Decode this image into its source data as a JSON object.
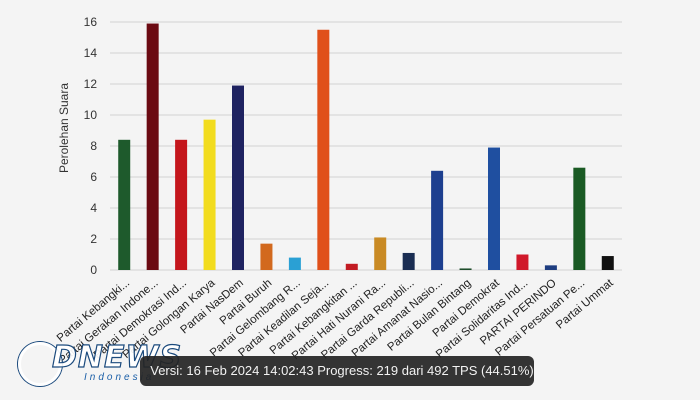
{
  "chart_data": {
    "type": "bar",
    "title": "",
    "xlabel": "",
    "ylabel": "Perolehan Suara",
    "ylim": [
      0,
      16
    ],
    "yticks": [
      0,
      2,
      4,
      6,
      8,
      10,
      12,
      14,
      16
    ],
    "grid": true,
    "categories": [
      "Partai Kebangki...",
      "Partai Gerakan Indone...",
      "Partai Demokrasi Ind...",
      "Partai Golongan Karya",
      "Partai NasDem",
      "Partai Buruh",
      "Partai Gelombang R...",
      "Partai Keadilan Seja...",
      "Partai Kebangkitan ...",
      "Partai Hati Nurani Ra...",
      "Partai Garda Republi...",
      "Partai Amanat Nasio...",
      "Partai Bulan Bintang",
      "Partai Demokrat",
      "Partai Solidaritas Ind...",
      "PARTAI PERINDO",
      "Partai Persatuan Pe...",
      "Partai Ummat"
    ],
    "values": [
      8.4,
      15.9,
      8.4,
      9.7,
      11.9,
      1.7,
      0.8,
      15.5,
      0.4,
      2.1,
      1.1,
      6.4,
      0.1,
      7.9,
      1.0,
      0.3,
      6.6,
      0.9
    ],
    "colors": [
      "#1e5a2c",
      "#6b0a12",
      "#c4161c",
      "#f2dc1e",
      "#1f2361",
      "#d2691e",
      "#2aa0d4",
      "#e0501a",
      "#c21b22",
      "#c98a24",
      "#1a2d52",
      "#1d3f8f",
      "#1e4d2b",
      "#1f4fa0",
      "#d0182a",
      "#1e3d80",
      "#1a5a24",
      "#111111"
    ]
  },
  "status": {
    "text": "Versi: 16 Feb 2024 14:02:43 Progress: 219 dari 492 TPS (44.51%)"
  },
  "watermark": {
    "brand": "DNEWS",
    "sub": "Indonesia"
  }
}
